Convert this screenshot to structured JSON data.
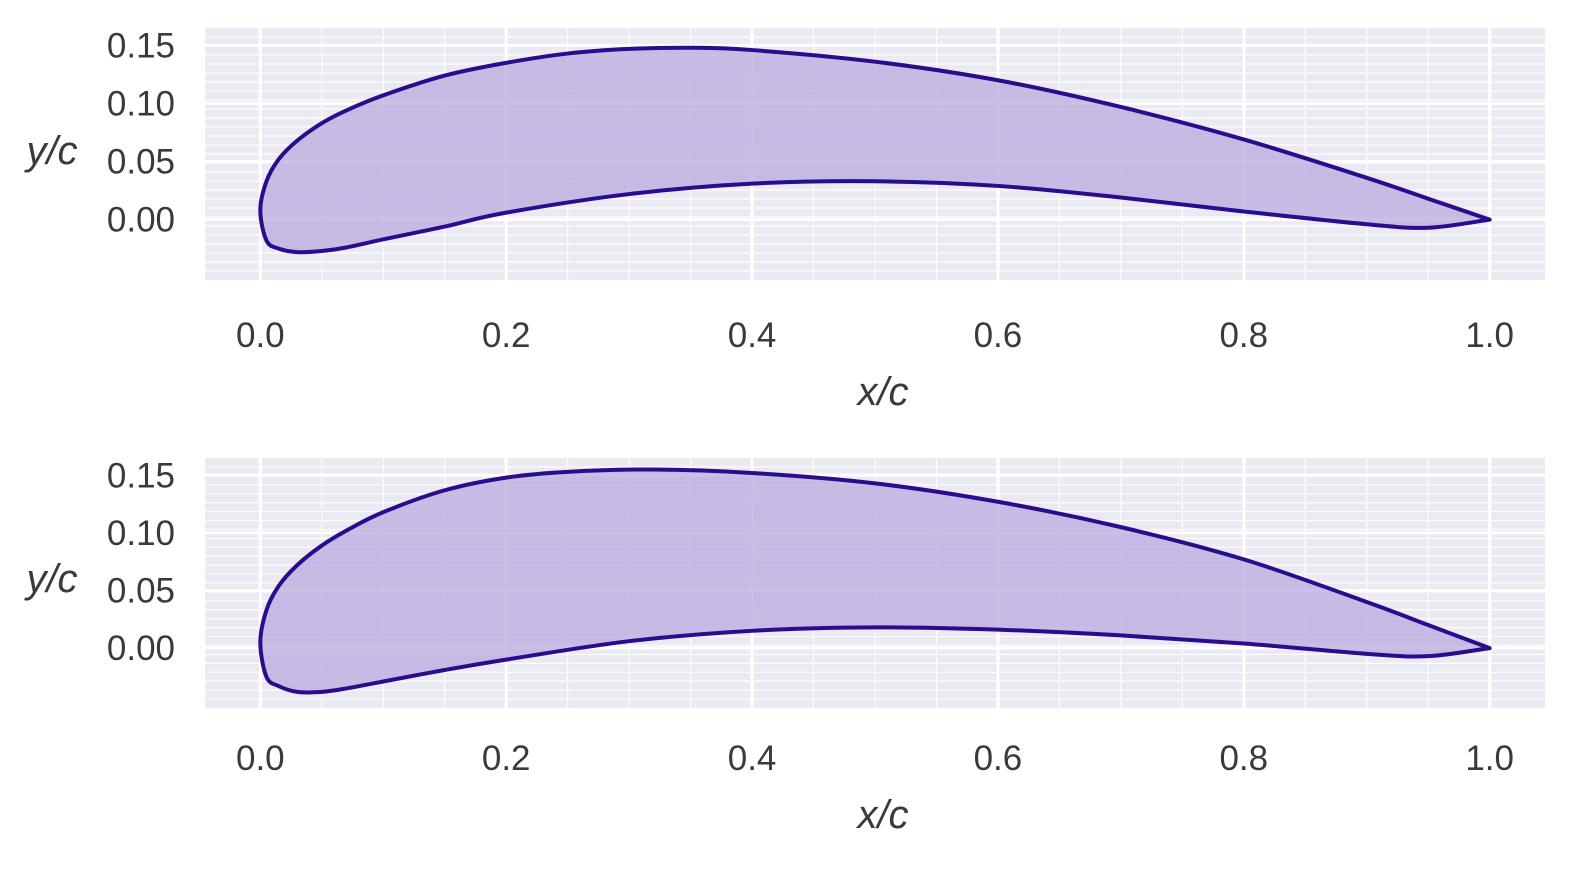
{
  "colors": {
    "background": "#ffffff",
    "plot_background": "#eaeaf2",
    "grid": "#ffffff",
    "outline": "#2a0c8c",
    "fill": "#b6a8dc",
    "text": "#3a3a3a"
  },
  "chart_data": [
    {
      "type": "area",
      "xlabel": "x/c",
      "ylabel": "y/c",
      "xlim": [
        -0.045,
        1.045
      ],
      "ylim": [
        -0.052,
        0.165
      ],
      "xticks": [
        0.0,
        0.2,
        0.4,
        0.6,
        0.8,
        1.0
      ],
      "xtick_labels": [
        "0.0",
        "0.2",
        "0.4",
        "0.6",
        "0.8",
        "1.0"
      ],
      "yticks": [
        0.0,
        0.05,
        0.1,
        0.15
      ],
      "ytick_labels": [
        "0.00",
        "0.05",
        "0.10",
        "0.15"
      ],
      "grid": true,
      "series": [
        {
          "x": [
            1.0,
            0.95,
            0.9,
            0.8,
            0.7,
            0.6,
            0.5,
            0.4,
            0.35,
            0.3,
            0.25,
            0.2,
            0.15,
            0.1,
            0.07,
            0.05,
            0.03,
            0.015,
            0.005,
            0.0,
            0.005,
            0.015,
            0.03,
            0.05,
            0.07,
            0.1,
            0.15,
            0.2,
            0.3,
            0.4,
            0.5,
            0.6,
            0.7,
            0.8,
            0.9,
            0.95,
            1.0
          ],
          "y": [
            0.0,
            0.018,
            0.036,
            0.069,
            0.097,
            0.12,
            0.136,
            0.146,
            0.148,
            0.147,
            0.143,
            0.135,
            0.124,
            0.107,
            0.094,
            0.083,
            0.068,
            0.052,
            0.033,
            0.008,
            -0.018,
            -0.025,
            -0.028,
            -0.027,
            -0.024,
            -0.017,
            -0.006,
            0.006,
            0.022,
            0.031,
            0.033,
            0.029,
            0.019,
            0.007,
            -0.004,
            -0.007,
            0.0
          ]
        }
      ]
    },
    {
      "type": "area",
      "xlabel": "x/c",
      "ylabel": "y/c",
      "xlim": [
        -0.045,
        1.045
      ],
      "ylim": [
        -0.052,
        0.165
      ],
      "xticks": [
        0.0,
        0.2,
        0.4,
        0.6,
        0.8,
        1.0
      ],
      "xtick_labels": [
        "0.0",
        "0.2",
        "0.4",
        "0.6",
        "0.8",
        "1.0"
      ],
      "yticks": [
        0.0,
        0.05,
        0.1,
        0.15
      ],
      "ytick_labels": [
        "0.00",
        "0.05",
        "0.10",
        "0.15"
      ],
      "grid": true,
      "series": [
        {
          "x": [
            1.0,
            0.95,
            0.9,
            0.8,
            0.7,
            0.6,
            0.5,
            0.4,
            0.32,
            0.25,
            0.2,
            0.15,
            0.1,
            0.07,
            0.05,
            0.03,
            0.015,
            0.005,
            0.0,
            0.005,
            0.015,
            0.03,
            0.05,
            0.07,
            0.1,
            0.15,
            0.2,
            0.3,
            0.4,
            0.5,
            0.6,
            0.7,
            0.8,
            0.9,
            0.95,
            1.0
          ],
          "y": [
            0.0,
            0.02,
            0.04,
            0.077,
            0.105,
            0.127,
            0.143,
            0.152,
            0.155,
            0.153,
            0.148,
            0.137,
            0.118,
            0.102,
            0.089,
            0.072,
            0.054,
            0.033,
            0.005,
            -0.025,
            -0.033,
            -0.038,
            -0.038,
            -0.035,
            -0.029,
            -0.019,
            -0.01,
            0.006,
            0.015,
            0.018,
            0.016,
            0.011,
            0.004,
            -0.005,
            -0.007,
            0.0
          ]
        }
      ]
    }
  ]
}
